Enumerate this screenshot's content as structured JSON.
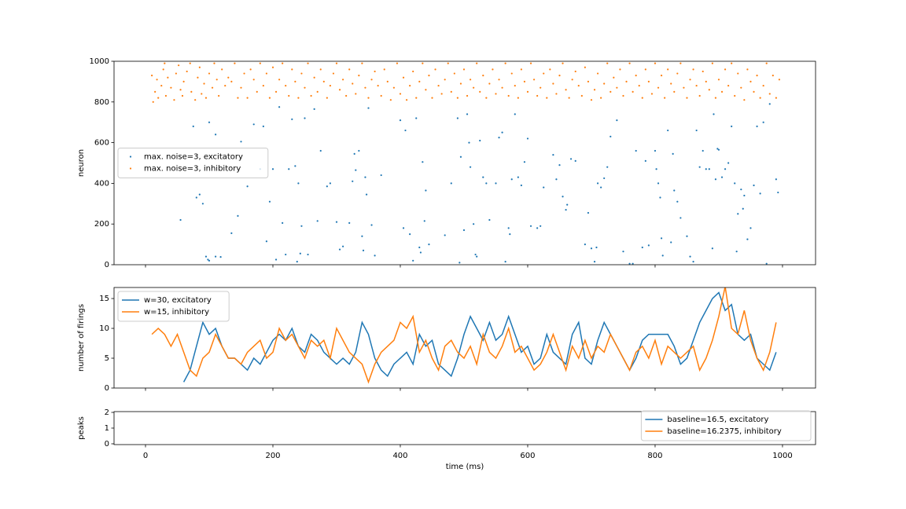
{
  "chart_data": [
    {
      "type": "scatter",
      "ylabel": "neuron",
      "xlim": [
        -49.4,
        1051.9
      ],
      "ylim": [
        0,
        1000
      ],
      "yticks": [
        0,
        200,
        400,
        600,
        800,
        1000
      ],
      "legend": "center left",
      "series": [
        {
          "name": "max. noise=3, excitatory",
          "color": "#1f77b4",
          "x": [
            55,
            75,
            80,
            85,
            90,
            95,
            98,
            100,
            100,
            110,
            110,
            118,
            135,
            145,
            150,
            160,
            170,
            180,
            185,
            190,
            195,
            200,
            205,
            210,
            215,
            220,
            225,
            230,
            235,
            238,
            240,
            243,
            245,
            250,
            255,
            265,
            270,
            275,
            285,
            290,
            300,
            305,
            310,
            320,
            325,
            328,
            330,
            335,
            340,
            342,
            345,
            347,
            350,
            355,
            360,
            370,
            400,
            405,
            408,
            415,
            420,
            425,
            430,
            432,
            435,
            438,
            440,
            445,
            470,
            480,
            490,
            493,
            495,
            500,
            505,
            508,
            510,
            515,
            518,
            520,
            525,
            530,
            535,
            540,
            550,
            555,
            560,
            565,
            570,
            572,
            575,
            580,
            585,
            590,
            595,
            600,
            605,
            615,
            620,
            625,
            640,
            645,
            650,
            655,
            660,
            662,
            668,
            675,
            690,
            695,
            700,
            705,
            708,
            710,
            715,
            720,
            725,
            730,
            740,
            750,
            760,
            765,
            770,
            780,
            785,
            790,
            800,
            802,
            805,
            808,
            810,
            812,
            820,
            825,
            828,
            830,
            835,
            840,
            850,
            855,
            860,
            865,
            870,
            875,
            880,
            885,
            890,
            892,
            895,
            898,
            900,
            905,
            910,
            915,
            920,
            925,
            928,
            930,
            935,
            938,
            940,
            945,
            950,
            955,
            960,
            965,
            970,
            975,
            980,
            990,
            993
          ],
          "values": [
            220,
            680,
            330,
            345,
            300,
            40,
            25,
            20,
            700,
            640,
            40,
            38,
            155,
            240,
            605,
            385,
            690,
            470,
            680,
            115,
            310,
            470,
            25,
            775,
            205,
            50,
            470,
            715,
            485,
            15,
            400,
            55,
            190,
            720,
            50,
            765,
            215,
            560,
            385,
            400,
            210,
            75,
            90,
            205,
            410,
            545,
            465,
            560,
            140,
            70,
            430,
            345,
            770,
            195,
            45,
            440,
            710,
            180,
            660,
            150,
            20,
            720,
            85,
            60,
            505,
            215,
            365,
            100,
            145,
            400,
            720,
            10,
            530,
            170,
            740,
            600,
            480,
            200,
            50,
            40,
            610,
            430,
            400,
            220,
            400,
            625,
            650,
            15,
            180,
            150,
            420,
            740,
            430,
            390,
            505,
            620,
            190,
            180,
            190,
            380,
            540,
            420,
            490,
            335,
            270,
            295,
            520,
            510,
            100,
            255,
            80,
            15,
            85,
            400,
            380,
            425,
            480,
            630,
            710,
            65,
            5,
            5,
            560,
            85,
            510,
            95,
            560,
            470,
            400,
            330,
            130,
            45,
            660,
            110,
            545,
            365,
            310,
            230,
            140,
            40,
            15,
            660,
            480,
            560,
            470,
            470,
            80,
            740,
            420,
            570,
            565,
            430,
            470,
            500,
            680,
            400,
            65,
            250,
            370,
            275,
            340,
            125,
            180,
            390,
            680,
            350,
            700,
            5,
            790,
            420,
            355
          ]
        },
        {
          "name": "max. noise=3, inhibitory",
          "color": "#ff7f0e",
          "x": [
            10,
            12,
            15,
            18,
            20,
            25,
            28,
            30,
            32,
            35,
            40,
            45,
            48,
            52,
            55,
            58,
            60,
            65,
            70,
            72,
            78,
            82,
            85,
            88,
            92,
            95,
            100,
            105,
            108,
            112,
            115,
            120,
            125,
            130,
            135,
            140,
            145,
            150,
            155,
            160,
            165,
            170,
            175,
            180,
            185,
            190,
            195,
            200,
            205,
            210,
            215,
            220,
            225,
            230,
            235,
            240,
            245,
            250,
            255,
            260,
            265,
            270,
            275,
            280,
            285,
            290,
            295,
            300,
            305,
            310,
            315,
            320,
            325,
            330,
            335,
            340,
            345,
            350,
            355,
            360,
            365,
            370,
            375,
            380,
            385,
            390,
            395,
            400,
            405,
            410,
            415,
            420,
            425,
            430,
            435,
            440,
            445,
            450,
            455,
            460,
            465,
            470,
            475,
            480,
            485,
            490,
            495,
            500,
            505,
            510,
            515,
            520,
            525,
            530,
            535,
            540,
            545,
            550,
            555,
            560,
            565,
            570,
            575,
            580,
            585,
            590,
            595,
            600,
            605,
            610,
            615,
            620,
            625,
            630,
            635,
            640,
            645,
            650,
            655,
            660,
            665,
            670,
            675,
            680,
            685,
            690,
            695,
            700,
            705,
            710,
            715,
            720,
            725,
            730,
            735,
            740,
            745,
            750,
            755,
            760,
            765,
            770,
            775,
            780,
            785,
            790,
            795,
            800,
            805,
            810,
            815,
            820,
            825,
            830,
            835,
            840,
            845,
            850,
            855,
            860,
            865,
            870,
            875,
            880,
            885,
            890,
            895,
            900,
            905,
            910,
            915,
            920,
            925,
            930,
            935,
            940,
            945,
            950,
            955,
            960,
            965,
            970,
            975,
            980,
            985,
            990,
            995
          ],
          "values": [
            930,
            800,
            850,
            910,
            820,
            880,
            960,
            990,
            830,
            920,
            870,
            810,
            940,
            980,
            860,
            830,
            900,
            950,
            990,
            850,
            810,
            920,
            970,
            840,
            890,
            820,
            940,
            870,
            990,
            910,
            830,
            960,
            880,
            920,
            900,
            990,
            820,
            870,
            940,
            820,
            960,
            910,
            850,
            990,
            880,
            940,
            820,
            970,
            850,
            910,
            990,
            880,
            830,
            960,
            900,
            820,
            940,
            870,
            990,
            830,
            920,
            850,
            960,
            900,
            820,
            880,
            940,
            990,
            860,
            910,
            830,
            960,
            890,
            840,
            930,
            990,
            870,
            820,
            910,
            950,
            880,
            830,
            960,
            900,
            810,
            870,
            990,
            840,
            920,
            810,
            880,
            950,
            820,
            900,
            990,
            860,
            930,
            820,
            960,
            880,
            840,
            910,
            990,
            850,
            940,
            820,
            890,
            960,
            830,
            910,
            870,
            990,
            850,
            930,
            820,
            890,
            960,
            840,
            910,
            870,
            990,
            830,
            940,
            880,
            820,
            960,
            900,
            850,
            990,
            910,
            830,
            870,
            940,
            820,
            960,
            890,
            840,
            930,
            990,
            860,
            820,
            910,
            950,
            880,
            830,
            970,
            900,
            810,
            860,
            940,
            820,
            890,
            990,
            850,
            920,
            870,
            960,
            830,
            900,
            990,
            850,
            930,
            880,
            820,
            960,
            900,
            840,
            990,
            870,
            930,
            820,
            960,
            890,
            850,
            940,
            990,
            870,
            820,
            910,
            960,
            880,
            830,
            950,
            900,
            860,
            990,
            820,
            910,
            850,
            960,
            880,
            990,
            830,
            940,
            870,
            810,
            960,
            900,
            850,
            930,
            820,
            880,
            990,
            840,
            930,
            820,
            910
          ]
        }
      ]
    },
    {
      "type": "line",
      "ylabel": "number of firings",
      "xlim": [
        -49.4,
        1051.9
      ],
      "ylim": [
        0,
        16.85
      ],
      "yticks": [
        0,
        5,
        10,
        15
      ],
      "legend": "upper left",
      "x": [
        10,
        20,
        30,
        40,
        50,
        60,
        70,
        80,
        90,
        100,
        110,
        120,
        130,
        140,
        150,
        160,
        170,
        180,
        190,
        200,
        210,
        220,
        230,
        240,
        250,
        260,
        270,
        280,
        290,
        300,
        310,
        320,
        330,
        340,
        350,
        360,
        370,
        380,
        390,
        400,
        410,
        420,
        430,
        440,
        450,
        460,
        470,
        480,
        490,
        500,
        510,
        520,
        530,
        540,
        550,
        560,
        570,
        580,
        590,
        600,
        610,
        620,
        630,
        640,
        650,
        660,
        670,
        680,
        690,
        700,
        710,
        720,
        730,
        740,
        750,
        760,
        770,
        780,
        790,
        800,
        810,
        820,
        830,
        840,
        850,
        860,
        870,
        880,
        890,
        900,
        910,
        920,
        930,
        940,
        950,
        960,
        970,
        980,
        990
      ],
      "series": [
        {
          "name": "w=30, excitatory",
          "color": "#1f77b4",
          "values": [
            null,
            null,
            null,
            null,
            null,
            1,
            3,
            7,
            11,
            9,
            10,
            7,
            5,
            5,
            4,
            3,
            5,
            4,
            6,
            8,
            9,
            8,
            10,
            7,
            6,
            9,
            8,
            6,
            5,
            4,
            5,
            4,
            6,
            11,
            9,
            5,
            3,
            2,
            4,
            5,
            6,
            4,
            9,
            7,
            8,
            4,
            3,
            2,
            5,
            9,
            12,
            10,
            8,
            11,
            8,
            9,
            12,
            9,
            6,
            7,
            4,
            5,
            9,
            6,
            5,
            4,
            9,
            11,
            5,
            4,
            8,
            11,
            9,
            7,
            5,
            3,
            5,
            8,
            9,
            9,
            9,
            9,
            7,
            4,
            5,
            8,
            11,
            13,
            15,
            16,
            13,
            14,
            9,
            8,
            9,
            5,
            4,
            3,
            6
          ]
        },
        {
          "name": "w=15, inhibitory",
          "color": "#ff7f0e",
          "values": [
            9,
            10,
            9,
            7,
            9,
            6,
            3,
            2,
            5,
            6,
            9,
            7,
            5,
            5,
            4,
            6,
            7,
            8,
            5,
            6,
            10,
            8,
            9,
            7,
            5,
            8,
            7,
            8,
            5,
            10,
            8,
            6,
            5,
            4,
            1,
            4,
            6,
            7,
            8,
            11,
            10,
            12,
            6,
            8,
            5,
            3,
            7,
            8,
            6,
            5,
            7,
            4,
            9,
            6,
            5,
            7,
            10,
            6,
            7,
            5,
            3,
            4,
            6,
            9,
            6,
            3,
            7,
            5,
            8,
            5,
            7,
            6,
            9,
            7,
            5,
            3,
            6,
            7,
            5,
            8,
            4,
            7,
            6,
            5,
            6,
            7,
            3,
            5,
            8,
            12,
            17,
            10,
            9,
            13,
            8,
            5,
            3,
            6,
            11
          ]
        }
      ]
    },
    {
      "type": "line",
      "ylabel": "peaks",
      "xlabel": "time (ms)",
      "xlim": [
        -49.4,
        1051.9
      ],
      "ylim": [
        -0.05,
        2.05
      ],
      "yticks": [
        0,
        1,
        2
      ],
      "xticks": [
        0,
        200,
        400,
        600,
        800,
        1000
      ],
      "legend": "lower right",
      "x": [],
      "series": [
        {
          "name": "baseline=16.5, excitatory",
          "color": "#1f77b4",
          "values": []
        },
        {
          "name": "baseline=16.2375, inhibitory",
          "color": "#ff7f0e",
          "values": []
        }
      ]
    }
  ]
}
